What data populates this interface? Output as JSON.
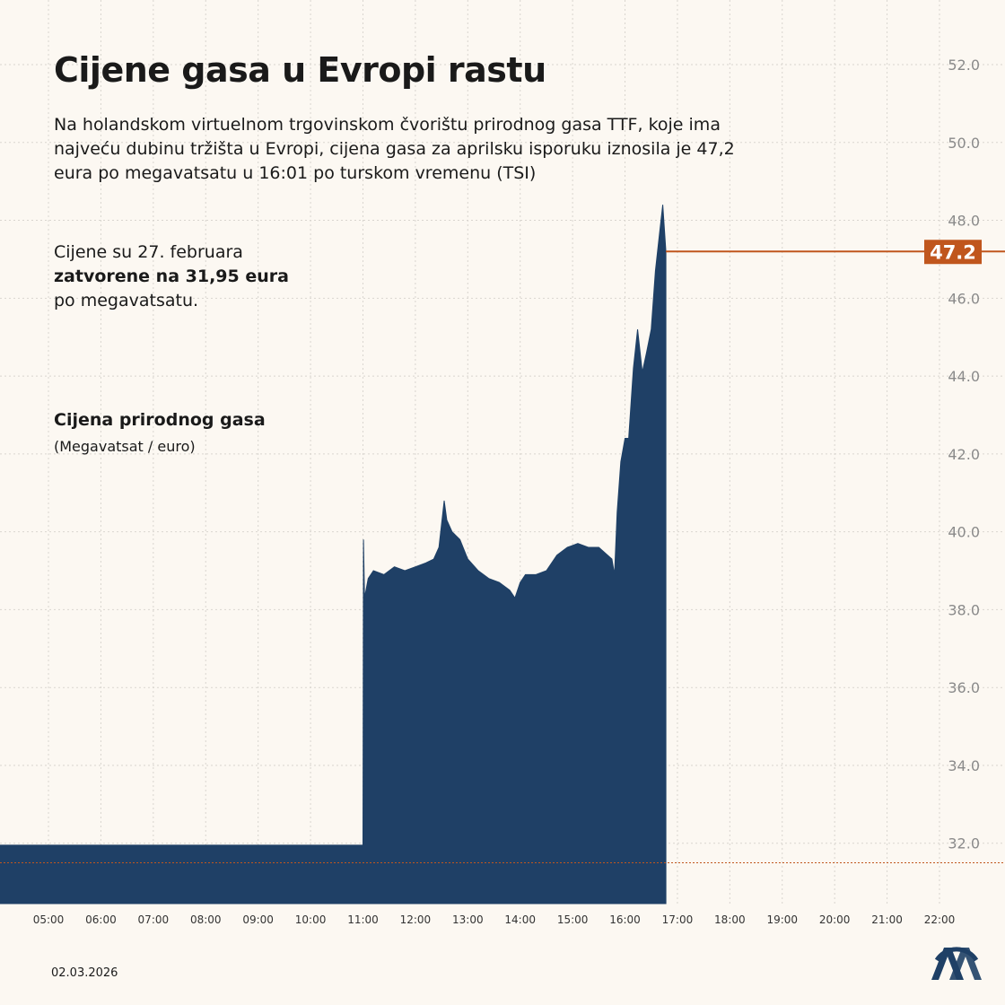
{
  "chart_data": {
    "type": "area",
    "title": "Cijene gasa u Evropi rastu",
    "subtitle_lines": [
      "Na holandskom virtuelnom trgovinskom čvorištu prirodnog gasa TTF, koje ima",
      "najveću dubinu tržišta u Evropi, cijena gasa za aprilsku isporuku iznosila je 47,2",
      "eura po megavatsatu u 16:01 po turskom vremenu (TSI)"
    ],
    "note": {
      "line1": "Cijene su 27. februara",
      "line2": "zatvorene na 31,95 eura",
      "line3": "po megavatsatu."
    },
    "legend_title": "Cijena prirodnog gasa",
    "legend_unit": "(Megavatsat / euro)",
    "date": "02.03.2026",
    "color": "#1f4066",
    "accent_color": "#c0561d",
    "reference_line": 31.5,
    "grid": true,
    "x": [
      4.075,
      11.0,
      11.01,
      11.03,
      11.1,
      11.2,
      11.4,
      11.6,
      11.8,
      12.0,
      12.2,
      12.35,
      12.45,
      12.5,
      12.55,
      12.6,
      12.7,
      12.85,
      13.0,
      13.2,
      13.4,
      13.6,
      13.8,
      13.9,
      14.0,
      14.1,
      14.3,
      14.5,
      14.7,
      14.9,
      15.1,
      15.3,
      15.5,
      15.75,
      15.8,
      15.85,
      15.92,
      16.0,
      16.07,
      16.16,
      16.24,
      16.33,
      16.41,
      16.5,
      16.58,
      16.67,
      16.72,
      16.78
    ],
    "values": [
      31.95,
      31.95,
      39.8,
      38.3,
      38.8,
      39.0,
      38.9,
      39.1,
      39.0,
      39.1,
      39.2,
      39.3,
      39.6,
      40.2,
      40.8,
      40.3,
      40.0,
      39.8,
      39.3,
      39.0,
      38.8,
      38.7,
      38.5,
      38.3,
      38.7,
      38.9,
      38.9,
      39.0,
      39.4,
      39.6,
      39.7,
      39.6,
      39.6,
      39.3,
      38.9,
      40.5,
      41.8,
      42.4,
      42.4,
      44.2,
      45.2,
      44.1,
      44.6,
      45.2,
      46.7,
      47.8,
      48.4,
      47.2
    ],
    "xlim": [
      4.075,
      23.25
    ],
    "ylim": [
      30.45,
      53
    ],
    "xticks": [
      {
        "value": 5,
        "label": "05:00"
      },
      {
        "value": 6,
        "label": "06:00"
      },
      {
        "value": 7,
        "label": "07:00"
      },
      {
        "value": 8,
        "label": "08:00"
      },
      {
        "value": 9,
        "label": "09:00"
      },
      {
        "value": 10,
        "label": "10:00"
      },
      {
        "value": 11,
        "label": "11:00"
      },
      {
        "value": 12,
        "label": "12:00"
      },
      {
        "value": 13,
        "label": "13:00"
      },
      {
        "value": 14,
        "label": "14:00"
      },
      {
        "value": 15,
        "label": "15:00"
      },
      {
        "value": 16,
        "label": "16:00"
      },
      {
        "value": 17,
        "label": "17:00"
      },
      {
        "value": 18,
        "label": "18:00"
      },
      {
        "value": 19,
        "label": "19:00"
      },
      {
        "value": 20,
        "label": "20:00"
      },
      {
        "value": 21,
        "label": "21:00"
      },
      {
        "value": 22,
        "label": "22:00"
      }
    ],
    "yticks": [
      {
        "value": 32,
        "label": "32.0"
      },
      {
        "value": 34,
        "label": "34.0"
      },
      {
        "value": 36,
        "label": "36.0"
      },
      {
        "value": 38,
        "label": "38.0"
      },
      {
        "value": 40,
        "label": "40.0"
      },
      {
        "value": 42,
        "label": "42.0"
      },
      {
        "value": 44,
        "label": "44.0"
      },
      {
        "value": 46,
        "label": "46.0"
      },
      {
        "value": 48,
        "label": "48.0"
      },
      {
        "value": 50,
        "label": "50.0"
      },
      {
        "value": 52,
        "label": "52.0"
      }
    ]
  }
}
